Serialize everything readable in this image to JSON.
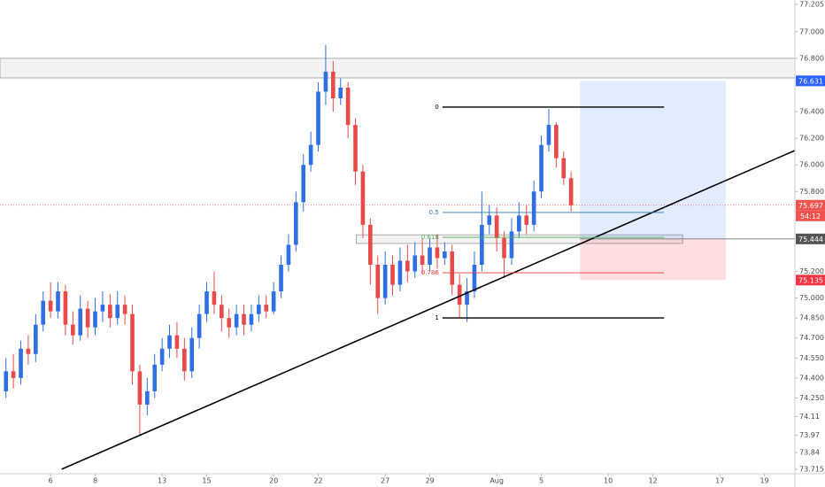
{
  "chart_data": {
    "type": "candlestick",
    "up_color": "#2f6fe4",
    "down_color": "#e84a4a",
    "xlim": [
      -0.8,
      106.1
    ],
    "ylim": [
      73.681,
      77.238
    ],
    "xticks": [
      6,
      {
        "value": 12,
        "label": "8"
      },
      {
        "value": 21,
        "label": "13"
      },
      {
        "value": 27,
        "label": "15"
      },
      {
        "value": 36,
        "label": "20"
      },
      {
        "value": 42,
        "label": "22"
      },
      {
        "value": 51,
        "label": "27"
      },
      {
        "value": 57,
        "label": "29"
      },
      {
        "value": 66,
        "label": "Aug"
      },
      {
        "value": 72,
        "label": "5"
      },
      {
        "value": 81,
        "label": "10"
      },
      {
        "value": 87,
        "label": "12"
      },
      {
        "value": 96,
        "label": "17"
      },
      {
        "value": 102,
        "label": "19"
      }
    ],
    "yticks": [
      77.205,
      {
        "value": 77,
        "label": "77.000"
      },
      {
        "value": 76.8,
        "label": "76.800"
      },
      {
        "value": 76.4,
        "label": "76.400"
      },
      {
        "value": 76.2,
        "label": "76.200"
      },
      {
        "value": 76,
        "label": "76.000"
      },
      {
        "value": 75.8,
        "label": "75.800"
      },
      {
        "value": 75.2,
        "label": "75.200"
      },
      {
        "value": 75,
        "label": "75.000"
      },
      {
        "value": 74.85,
        "label": "74.850"
      },
      {
        "value": 74.7,
        "label": "74.700"
      },
      {
        "value": 74.55,
        "label": "74.550"
      },
      {
        "value": 74.4,
        "label": "74.400"
      },
      {
        "value": 74.25,
        "label": "74.250"
      },
      74.11,
      73.97,
      73.84,
      73.715
    ],
    "candles": [
      [
        74.3,
        74.55,
        74.25,
        74.45
      ],
      [
        74.45,
        74.58,
        74.32,
        74.4
      ],
      [
        74.4,
        74.68,
        74.35,
        74.62
      ],
      [
        74.62,
        74.72,
        74.5,
        74.58
      ],
      [
        74.58,
        74.88,
        74.52,
        74.8
      ],
      [
        74.8,
        75.05,
        74.75,
        74.98
      ],
      [
        74.98,
        75.12,
        74.85,
        74.9
      ],
      [
        74.9,
        75.12,
        74.85,
        75.05
      ],
      [
        75.05,
        75.1,
        74.72,
        74.8
      ],
      [
        74.8,
        74.9,
        74.65,
        74.72
      ],
      [
        74.72,
        75.02,
        74.68,
        74.92
      ],
      [
        74.92,
        74.98,
        74.7,
        74.78
      ],
      [
        74.78,
        75.0,
        74.72,
        74.9
      ],
      [
        74.9,
        75.05,
        74.82,
        74.95
      ],
      [
        74.95,
        75.03,
        74.78,
        74.85
      ],
      [
        74.85,
        75.05,
        74.8,
        74.95
      ],
      [
        74.95,
        75.02,
        74.8,
        74.88
      ],
      [
        74.88,
        74.95,
        74.35,
        74.45
      ],
      [
        74.45,
        74.5,
        73.97,
        74.2
      ],
      [
        74.2,
        74.4,
        74.12,
        74.3
      ],
      [
        74.3,
        74.58,
        74.25,
        74.5
      ],
      [
        74.5,
        74.7,
        74.45,
        74.62
      ],
      [
        74.62,
        74.8,
        74.55,
        74.72
      ],
      [
        74.72,
        74.82,
        74.55,
        74.62
      ],
      [
        74.62,
        74.7,
        74.38,
        74.45
      ],
      [
        74.45,
        74.78,
        74.4,
        74.7
      ],
      [
        74.7,
        74.95,
        74.62,
        74.88
      ],
      [
        74.88,
        75.12,
        74.82,
        75.05
      ],
      [
        75.05,
        75.2,
        74.88,
        74.95
      ],
      [
        74.95,
        75.02,
        74.75,
        74.85
      ],
      [
        74.85,
        74.92,
        74.7,
        74.78
      ],
      [
        74.78,
        74.95,
        74.72,
        74.88
      ],
      [
        74.88,
        74.95,
        74.72,
        74.8
      ],
      [
        74.8,
        74.95,
        74.75,
        74.88
      ],
      [
        74.88,
        75.02,
        74.82,
        74.95
      ],
      [
        74.95,
        75.02,
        74.85,
        74.9
      ],
      [
        74.9,
        75.12,
        74.88,
        75.05
      ],
      [
        75.05,
        75.32,
        75.0,
        75.25
      ],
      [
        75.25,
        75.48,
        75.2,
        75.4
      ],
      [
        75.4,
        75.8,
        75.35,
        75.72
      ],
      [
        75.72,
        76.08,
        75.65,
        76.0
      ],
      [
        76.0,
        76.25,
        75.95,
        76.15
      ],
      [
        76.15,
        76.62,
        76.1,
        76.55
      ],
      [
        76.55,
        76.9,
        76.45,
        76.7
      ],
      [
        76.7,
        76.78,
        76.4,
        76.5
      ],
      [
        76.5,
        76.65,
        76.45,
        76.58
      ],
      [
        76.58,
        76.62,
        76.2,
        76.3
      ],
      [
        76.3,
        76.35,
        75.85,
        75.95
      ],
      [
        75.95,
        76.0,
        75.45,
        75.55
      ],
      [
        75.55,
        75.6,
        75.1,
        75.25
      ],
      [
        75.25,
        75.32,
        74.88,
        75.0
      ],
      [
        75.0,
        75.35,
        74.95,
        75.25
      ],
      [
        75.25,
        75.32,
        75.02,
        75.1
      ],
      [
        75.1,
        75.38,
        75.05,
        75.28
      ],
      [
        75.28,
        75.4,
        75.12,
        75.2
      ],
      [
        75.2,
        75.42,
        75.15,
        75.32
      ],
      [
        75.32,
        75.45,
        75.18,
        75.25
      ],
      [
        75.25,
        75.45,
        75.2,
        75.38
      ],
      [
        75.38,
        75.48,
        75.22,
        75.3
      ],
      [
        75.3,
        75.42,
        75.25,
        75.35
      ],
      [
        75.35,
        75.4,
        75.02,
        75.1
      ],
      [
        75.1,
        75.18,
        74.85,
        74.95
      ],
      [
        74.95,
        75.15,
        74.82,
        75.05
      ],
      [
        75.05,
        75.35,
        75.0,
        75.25
      ],
      [
        75.25,
        75.8,
        75.2,
        75.55
      ],
      [
        75.55,
        75.7,
        75.48,
        75.62
      ],
      [
        75.62,
        75.68,
        75.35,
        75.45
      ],
      [
        75.45,
        75.5,
        75.15,
        75.3
      ],
      [
        75.3,
        75.6,
        75.25,
        75.5
      ],
      [
        75.5,
        75.72,
        75.45,
        75.62
      ],
      [
        75.62,
        75.7,
        75.48,
        75.55
      ],
      [
        75.55,
        75.88,
        75.5,
        75.8
      ],
      [
        75.8,
        76.22,
        75.75,
        76.15
      ],
      [
        76.15,
        76.42,
        76.1,
        76.3
      ],
      [
        76.3,
        76.32,
        75.98,
        76.05
      ],
      [
        76.05,
        76.1,
        75.85,
        75.9
      ],
      [
        75.9,
        75.95,
        75.65,
        75.697
      ]
    ],
    "countdown": "54:12",
    "zones": [
      {
        "x_range": [
          -0.8,
          106.1
        ],
        "ylim": [
          76.653,
          76.8
        ]
      },
      {
        "x_range": [
          47.1,
          91.0
        ],
        "ylim": [
          75.41,
          75.475
        ]
      }
    ],
    "trendline": {
      "x": [
        7.5,
        106.1
      ],
      "y": [
        73.715,
        76.108
      ]
    },
    "fib": {
      "high": 76.434,
      "low": 74.851,
      "x_range": [
        58.7,
        88.5
      ],
      "levels": [
        0,
        0.5,
        0.618,
        0.786,
        1
      ],
      "colors": [
        "#000000",
        "#2a7ab0",
        "#4caf50",
        "#e53935",
        "#000000"
      ]
    },
    "position": {
      "x_range": [
        77.2,
        96.8
      ],
      "entry": 75.444,
      "target": 76.631,
      "stop": 75.135,
      "target_color": "rgba(41,98,255,0.13)",
      "stop_color": "rgba(242,54,69,0.16)",
      "target_label_color": "#2962ff",
      "entry_label_color": "#555555",
      "stop_label_color": "#f23645"
    },
    "last_price_color": "#ef5350"
  }
}
